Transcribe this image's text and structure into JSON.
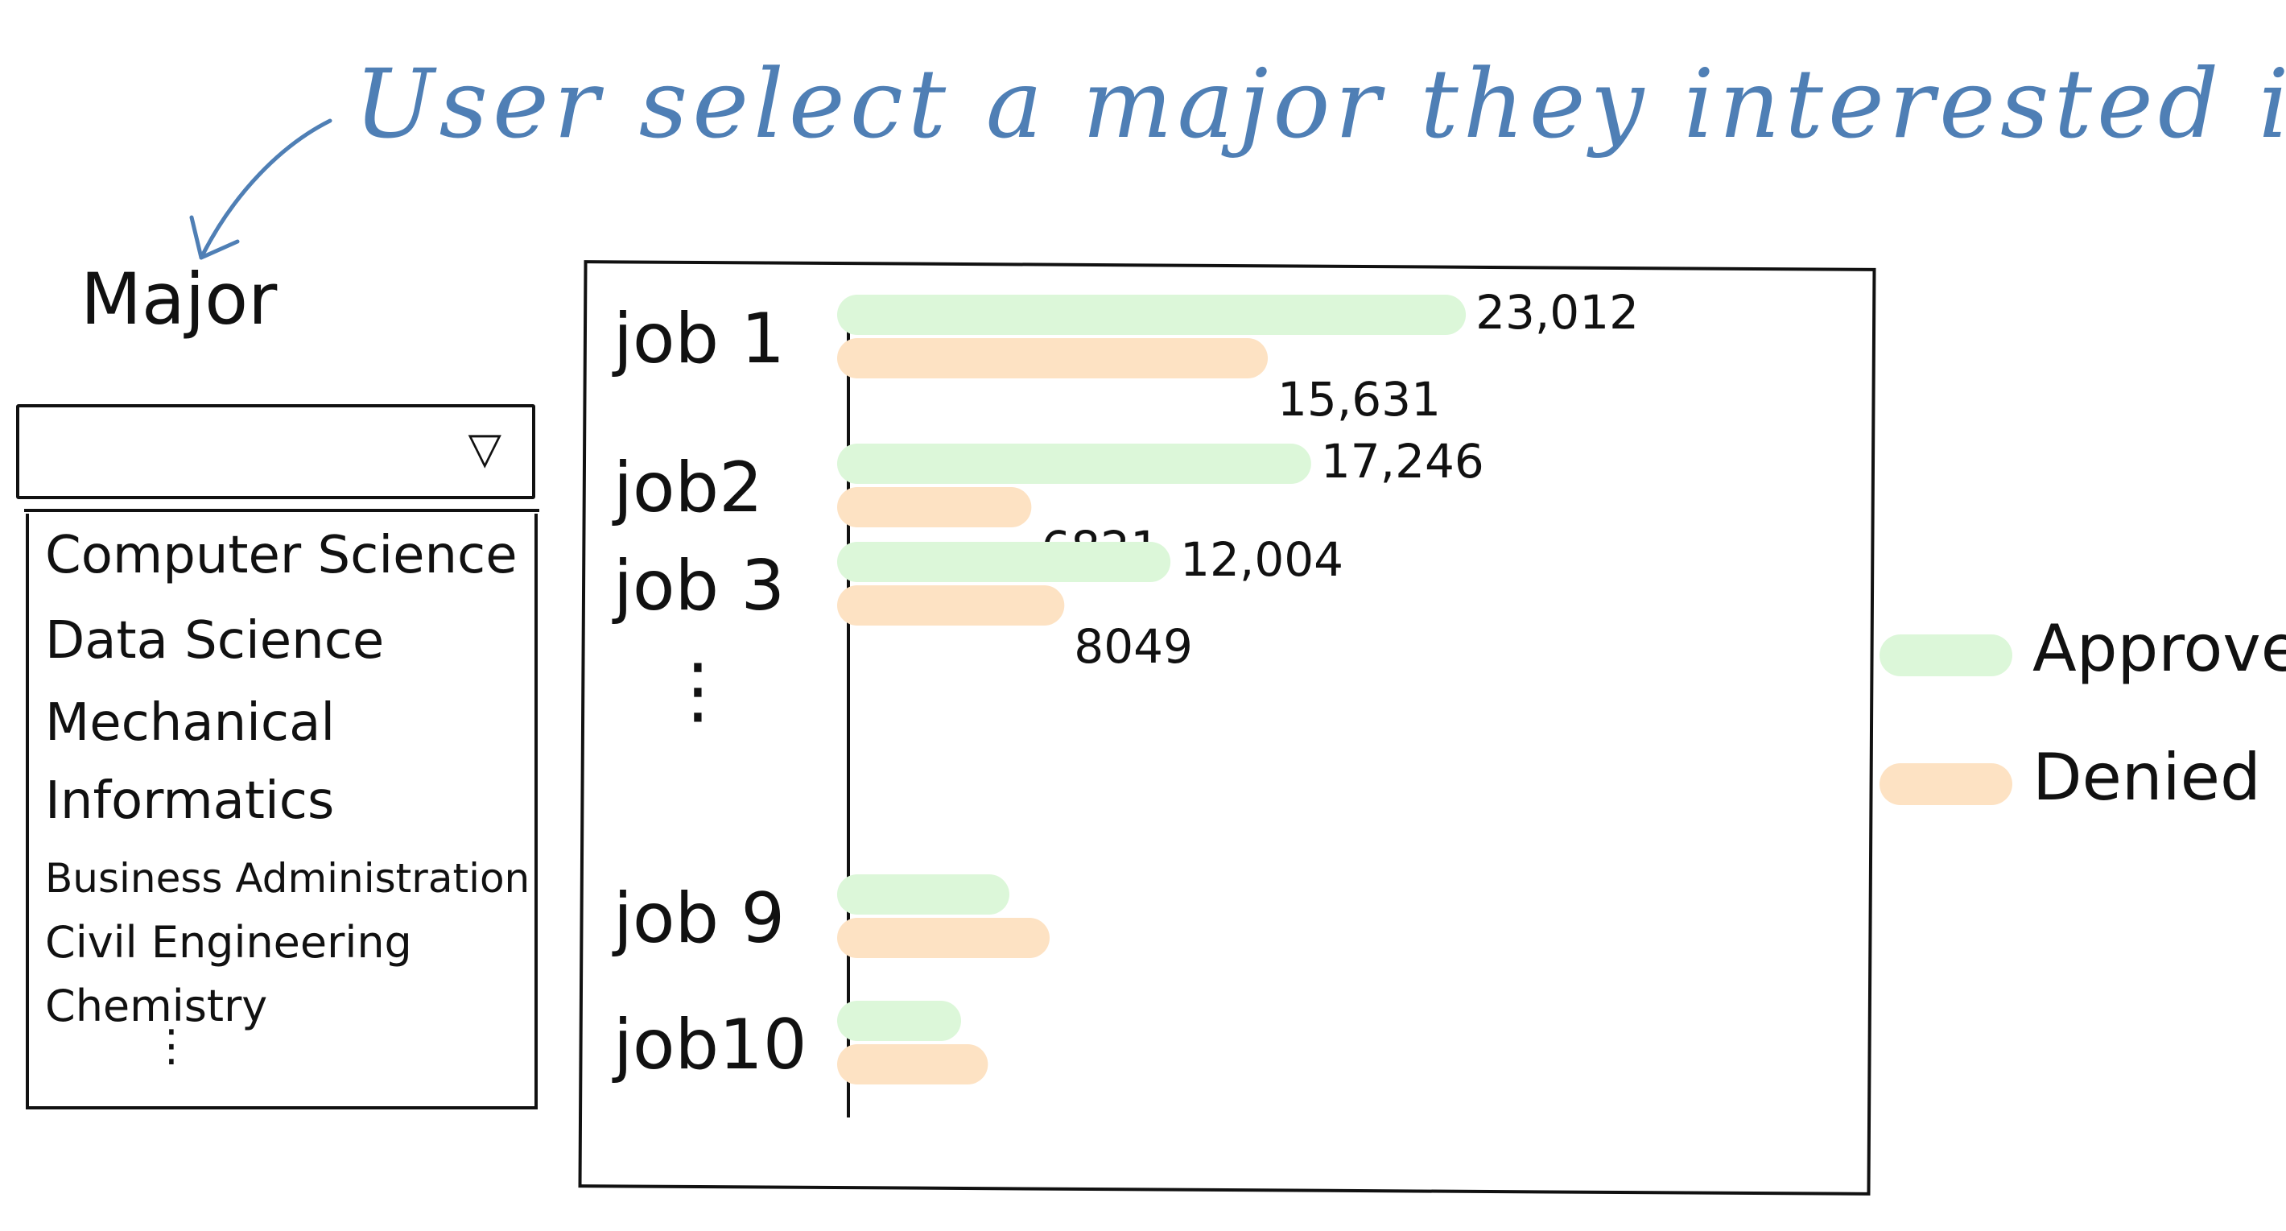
{
  "annotation": {
    "text": "User select a major they interested in."
  },
  "major_selector": {
    "label": "Major",
    "selected_value": "",
    "caret": "▽",
    "options": [
      "Computer Science",
      "Data Science",
      "Mechanical",
      "Informatics",
      "Business Administration",
      "Civil Engineering",
      "Chemistry"
    ],
    "more_indicator": "⋮"
  },
  "colors": {
    "approved": "#dcf7d9",
    "denied": "#fde2c3",
    "annotation": "#4f7fb5",
    "ink": "#111111"
  },
  "chart_data": {
    "type": "bar",
    "orientation": "horizontal",
    "categories": [
      "job 1",
      "job2",
      "job 3",
      "job 9",
      "job10"
    ],
    "gap_indicator": "⋮",
    "series": [
      {
        "name": "Approved",
        "color": "#dcf7d9",
        "values": [
          23012,
          17246,
          12004,
          6000,
          4200
        ],
        "labels": [
          "23,012",
          "17,246",
          "12,004",
          "",
          ""
        ]
      },
      {
        "name": "Denied",
        "color": "#fde2c3",
        "values": [
          15631,
          6821,
          8049,
          7500,
          5200
        ],
        "labels": [
          "15,631",
          "6821",
          "8049",
          "",
          ""
        ]
      }
    ],
    "xlim": [
      0,
      30000
    ],
    "legend_position": "right",
    "grid": false,
    "title": "",
    "xlabel": "",
    "ylabel": ""
  }
}
